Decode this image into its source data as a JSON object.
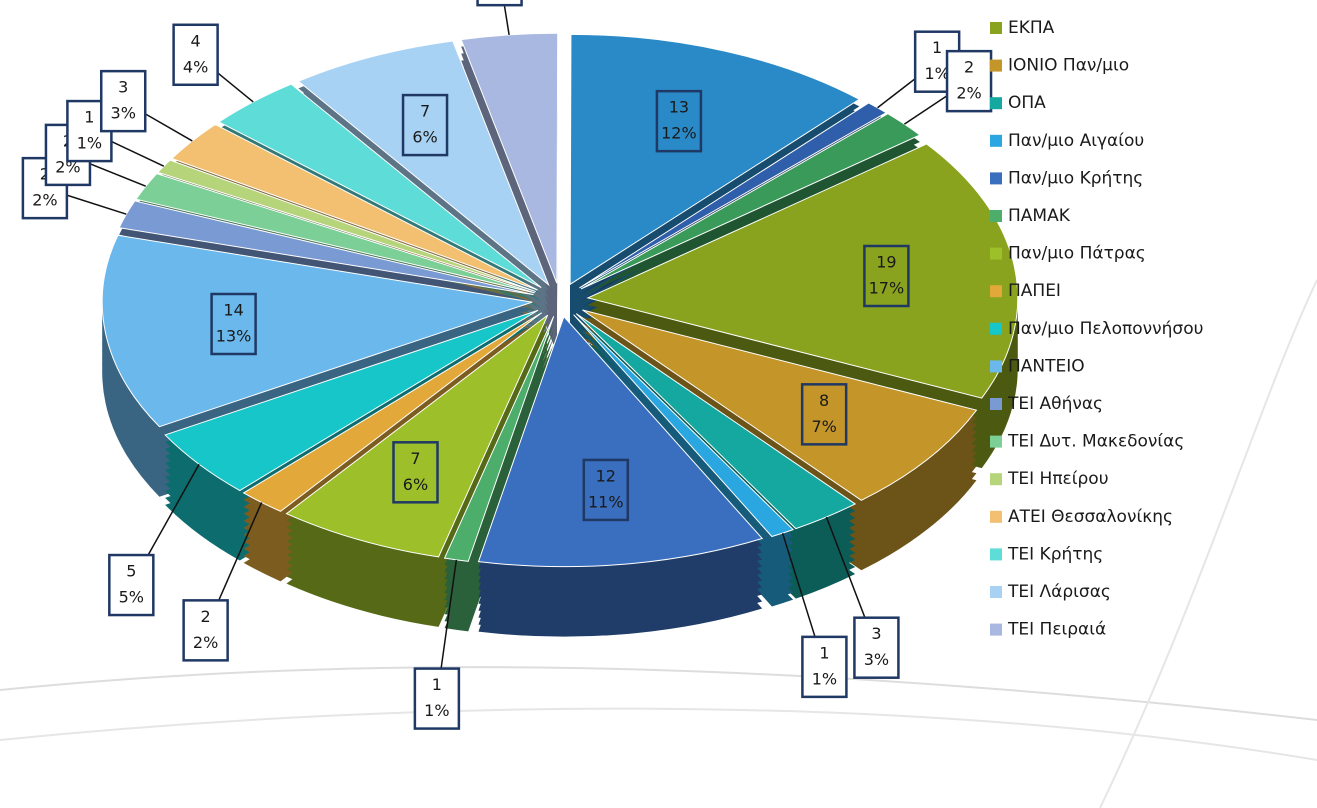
{
  "chart_data": {
    "type": "pie",
    "categories": [
      "ΕΚΠΑ",
      "ΙΟΝΙΟ Παν/μιο",
      "ΟΠΑ",
      "Παν/μιο Αιγαίου",
      "Παν/μιο Κρήτης",
      "ΠΑΜΑΚ",
      "Παν/μιο Πάτρας",
      "ΠΑΠΕΙ",
      "Παν/μιο Πελοποννήσου",
      "ΠΑΝΤΕΙΟ",
      "ΤΕΙ Αθήνας",
      "ΤΕΙ Δυτ. Μακεδονίας",
      "ΤΕΙ Ηπείρου",
      "ΑΤΕΙ Θεσσαλονίκης",
      "ΤΕΙ Κρήτης",
      "ΤΕΙ Λάρισας",
      "ΤΕΙ Πειραιά",
      null,
      null,
      null
    ],
    "values": [
      19,
      8,
      3,
      1,
      12,
      1,
      7,
      2,
      5,
      14,
      2,
      2,
      1,
      3,
      4,
      7,
      4,
      13,
      1,
      2
    ],
    "percent_labels": [
      "17%",
      "7%",
      "3%",
      "1%",
      "11%",
      "1%",
      "6%",
      "2%",
      "5%",
      "13%",
      "2%",
      "2%",
      "1%",
      "3%",
      "4%",
      "6%",
      "4%",
      "12%",
      "1%",
      "2%"
    ],
    "colors": [
      "#8aa31f",
      "#c4962a",
      "#15a8a0",
      "#2aa6e0",
      "#3a6fbf",
      "#4cae6a",
      "#9cbf2a",
      "#e3a83a",
      "#17c6c8",
      "#6ab8ec",
      "#7a9ad4",
      "#7ccf96",
      "#b6d47a",
      "#f2c070",
      "#5ddcd8",
      "#a8d2f4",
      "#a8b8e0",
      "#2a8ac8",
      "#2f5eaa",
      "#3a9a5a"
    ],
    "legend": "right"
  }
}
